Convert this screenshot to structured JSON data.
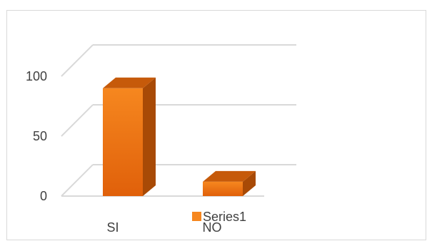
{
  "chart_data": {
    "type": "bar",
    "style": "3d-column",
    "categories": [
      "SI",
      "NO"
    ],
    "series": [
      {
        "name": "Series1",
        "values": [
          90,
          12
        ]
      }
    ],
    "ylim": [
      0,
      100
    ],
    "y_ticks": [
      0,
      50,
      100
    ],
    "grid": true,
    "legend": "bottom",
    "colors": {
      "bar_front_top": "#f6871f",
      "bar_front_bottom": "#e0600a",
      "bar_side": "#a84a06",
      "bar_top": "#c65a0a",
      "gridline": "#d9d9d9",
      "text": "#404040"
    }
  }
}
